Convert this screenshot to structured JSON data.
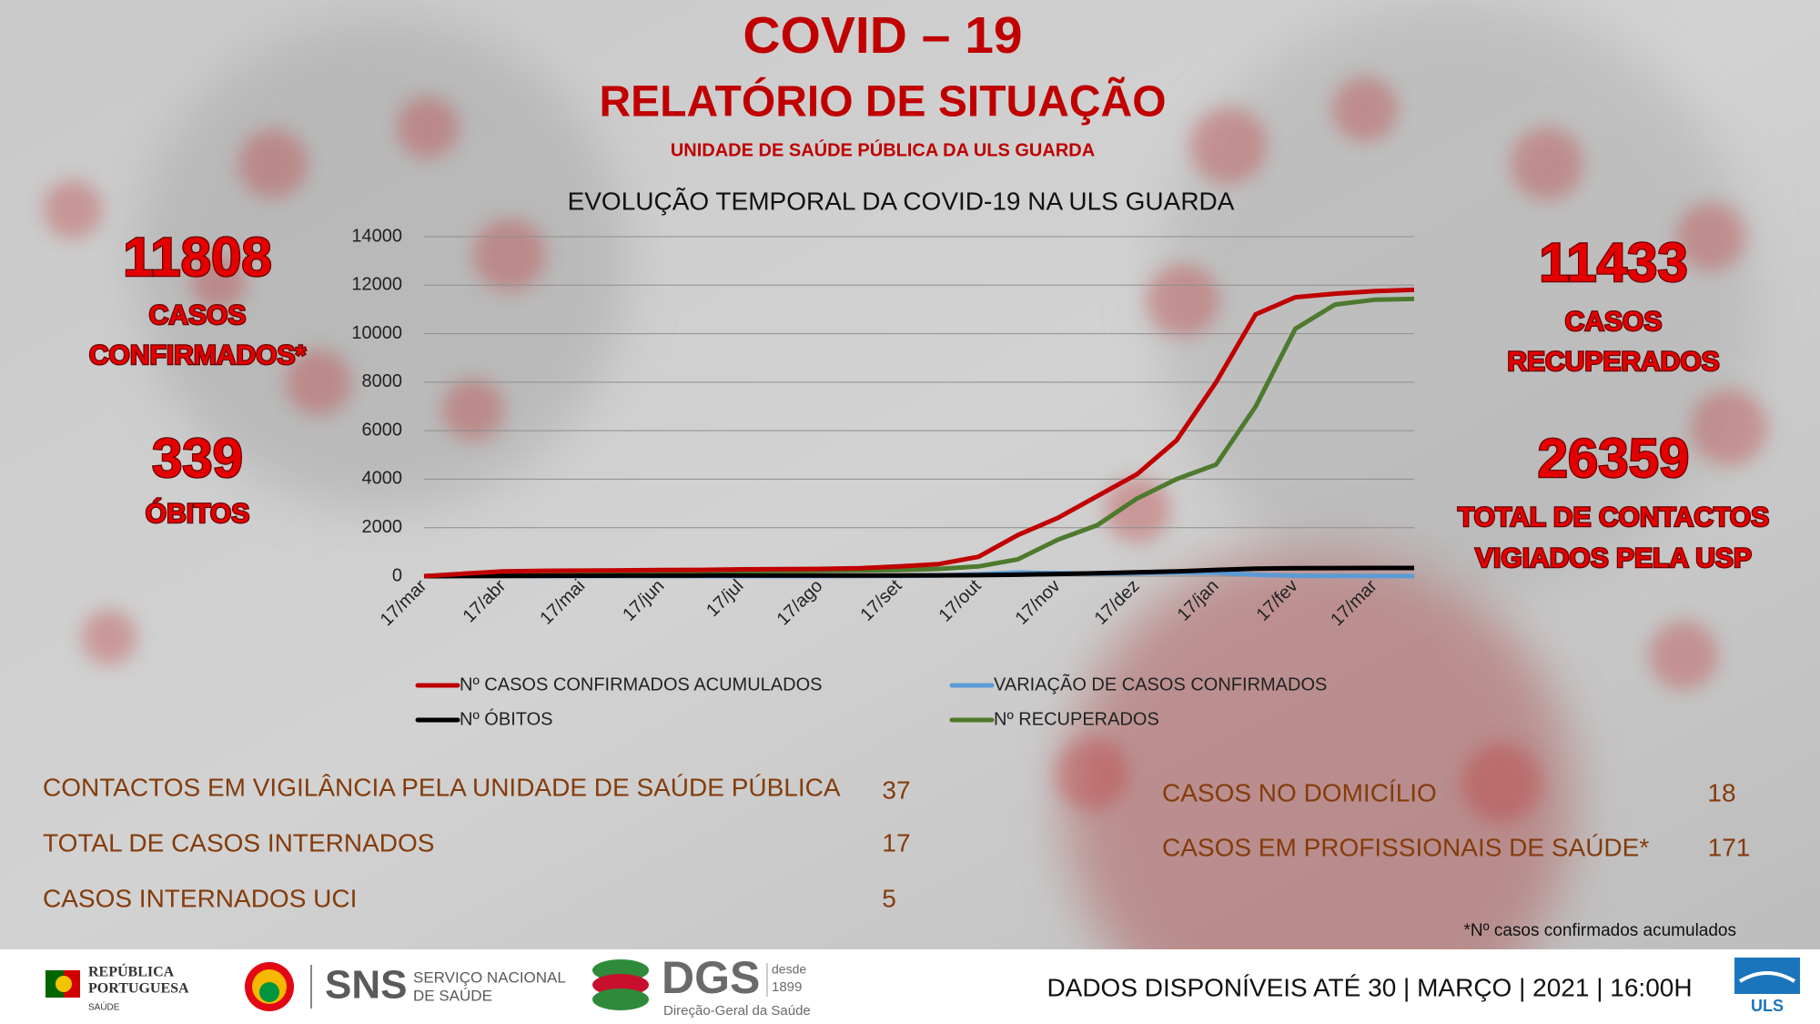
{
  "header": {
    "title": "COVID – 19",
    "subtitle": "RELATÓRIO DE SITUAÇÃO",
    "unit": "UNIDADE DE SAÚDE PÚBLICA DA ULS GUARDA"
  },
  "stats": {
    "confirmed": {
      "value": "11808",
      "label": [
        "CASOS",
        "CONFIRMADOS*"
      ]
    },
    "deaths": {
      "value": "339",
      "label": [
        "ÓBITOS"
      ]
    },
    "recovered": {
      "value": "11433",
      "label": [
        "CASOS",
        "RECUPERADOS"
      ]
    },
    "contacts": {
      "value": "26359",
      "label": [
        "TOTAL DE CONTACTOS",
        "VIGIADOS PELA USP"
      ]
    }
  },
  "chart_data": {
    "type": "line",
    "title": "EVOLUÇÃO TEMPORAL DA COVID-19 NA ULS GUARDA",
    "categories": [
      "17/mar",
      null,
      "17/abr",
      null,
      "17/mai",
      null,
      "17/jun",
      null,
      "17/jul",
      null,
      "17/ago",
      null,
      "17/set",
      null,
      "17/out",
      null,
      "17/nov",
      null,
      "17/dez",
      null,
      "17/jan",
      null,
      "17/fev",
      null,
      "17/mar",
      null
    ],
    "ylim": [
      0,
      14000
    ],
    "yticks": [
      0,
      2000,
      4000,
      6000,
      8000,
      10000,
      12000,
      14000
    ],
    "grid": true,
    "series": [
      {
        "name": "Nº CASOS CONFIRMADOS ACUMULADOS",
        "color": "#c00000",
        "values": [
          0,
          100,
          200,
          220,
          230,
          240,
          250,
          260,
          280,
          290,
          300,
          330,
          400,
          500,
          800,
          1700,
          2400,
          3300,
          4200,
          5600,
          8000,
          10800,
          11500,
          11650,
          11750,
          11808
        ]
      },
      {
        "name": "VARIAÇÃO DE CASOS CONFIRMADOS",
        "color": "#5b9bd5",
        "values": [
          0,
          20,
          10,
          5,
          3,
          2,
          2,
          3,
          4,
          5,
          5,
          10,
          15,
          30,
          80,
          150,
          120,
          100,
          120,
          150,
          140,
          60,
          20,
          10,
          5,
          2
        ]
      },
      {
        "name": "Nº ÓBITOS",
        "color": "#000000",
        "values": [
          0,
          5,
          10,
          15,
          20,
          22,
          24,
          25,
          26,
          27,
          28,
          29,
          30,
          32,
          40,
          60,
          90,
          120,
          160,
          200,
          260,
          310,
          330,
          335,
          338,
          339
        ]
      },
      {
        "name": "Nº RECUPERADOS",
        "color": "#4e7a2e",
        "values": [
          0,
          50,
          100,
          150,
          170,
          180,
          190,
          200,
          210,
          220,
          230,
          240,
          250,
          300,
          400,
          700,
          1500,
          2100,
          3200,
          4000,
          4600,
          7000,
          10200,
          11200,
          11400,
          11433
        ]
      }
    ]
  },
  "table": {
    "left": [
      [
        "CONTACTOS EM VIGILÂNCIA PELA UNIDADE DE SAÚDE PÚBLICA",
        "37"
      ],
      [
        "TOTAL DE CASOS INTERNADOS",
        "17"
      ],
      [
        "CASOS INTERNADOS UCI",
        "5"
      ]
    ],
    "right": [
      [
        "CASOS NO DOMICÍLIO",
        "18"
      ],
      [
        "CASOS EM PROFISSIONAIS DE SAÚDE*",
        "171"
      ]
    ],
    "footnote": "*Nº casos confirmados acumulados"
  },
  "footer": {
    "republica": [
      "REPÚBLICA",
      "PORTUGUESA",
      "SAÚDE"
    ],
    "sns": "SNS",
    "sns_name": [
      "SERVIÇO NACIONAL",
      "DE SAÚDE"
    ],
    "dgs": "DGS",
    "dgs_since": [
      "desde",
      "1899"
    ],
    "dgs_name": "Direção-Geral da Saúde",
    "uls": "ULS",
    "date": "DADOS DISPONÍVEIS ATÉ 30 | MARÇO | 2021 | 16:00H"
  }
}
